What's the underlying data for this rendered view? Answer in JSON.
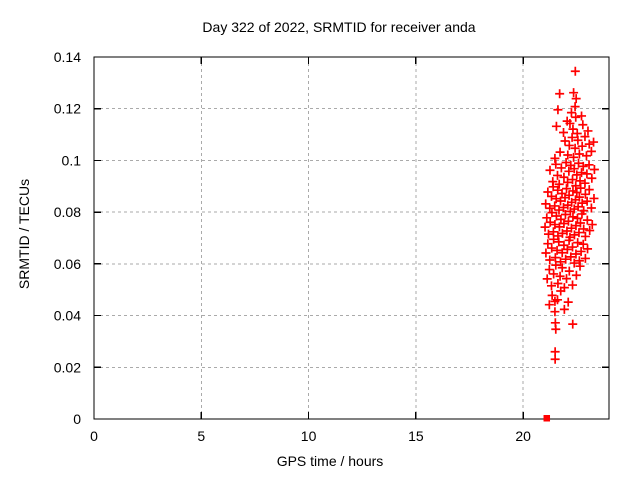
{
  "window": {
    "background": "#ffffff"
  },
  "chart_data": {
    "type": "scatter",
    "title": "Day 322 of 2022, SRMTID for receiver anda",
    "xlabel": "GPS time / hours",
    "ylabel": "SRMTID / TECUs",
    "xlim": [
      0,
      24
    ],
    "ylim": [
      0,
      0.14
    ],
    "xticks": [
      0,
      5,
      10,
      15,
      20
    ],
    "xtick_labels": [
      "0",
      "5",
      "10",
      "15",
      "20"
    ],
    "yticks": [
      0,
      0.02,
      0.04,
      0.06,
      0.08,
      0.1,
      0.12,
      0.14
    ],
    "ytick_labels": [
      "0",
      "0.02",
      "0.04",
      "0.06",
      "0.08",
      "0.1",
      "0.12",
      "0.14"
    ],
    "grid": true,
    "grid_color": "#aaaaaa",
    "axis_color": "#000000",
    "marker_color": "#ff0000",
    "legend": "none",
    "series": [
      {
        "name": "srmtid-values",
        "marker": "plus",
        "color": "#ff0000",
        "points": [
          [
            22.43,
            0.1345
          ],
          [
            21.7,
            0.1258
          ],
          [
            22.35,
            0.1262
          ],
          [
            22.47,
            0.1239
          ],
          [
            21.62,
            0.1196
          ],
          [
            22.25,
            0.1185
          ],
          [
            22.42,
            0.1208
          ],
          [
            22.72,
            0.1172
          ],
          [
            21.55,
            0.1132
          ],
          [
            21.88,
            0.1108
          ],
          [
            22.05,
            0.1152
          ],
          [
            22.18,
            0.1143
          ],
          [
            22.32,
            0.1121
          ],
          [
            22.45,
            0.1167
          ],
          [
            22.52,
            0.1104
          ],
          [
            22.78,
            0.1138
          ],
          [
            23.02,
            0.1114
          ],
          [
            21.48,
            0.1008
          ],
          [
            21.72,
            0.1032
          ],
          [
            21.95,
            0.1075
          ],
          [
            22.08,
            0.1021
          ],
          [
            22.15,
            0.1058
          ],
          [
            22.28,
            0.1089
          ],
          [
            22.35,
            0.1012
          ],
          [
            22.42,
            0.1047
          ],
          [
            22.55,
            0.1078
          ],
          [
            22.62,
            0.1025
          ],
          [
            22.75,
            0.1055
          ],
          [
            22.88,
            0.1092
          ],
          [
            22.95,
            0.1018
          ],
          [
            23.08,
            0.1063
          ],
          [
            23.18,
            0.1035
          ],
          [
            23.28,
            0.1071
          ],
          [
            21.25,
            0.0962
          ],
          [
            21.38,
            0.0918
          ],
          [
            21.52,
            0.0985
          ],
          [
            21.6,
            0.0942
          ],
          [
            21.68,
            0.0908
          ],
          [
            21.78,
            0.0971
          ],
          [
            21.9,
            0.0935
          ],
          [
            22.0,
            0.0992
          ],
          [
            22.07,
            0.0915
          ],
          [
            22.13,
            0.0958
          ],
          [
            22.22,
            0.0981
          ],
          [
            22.3,
            0.0926
          ],
          [
            22.38,
            0.0968
          ],
          [
            22.45,
            0.0902
          ],
          [
            22.5,
            0.0944
          ],
          [
            22.58,
            0.0989
          ],
          [
            22.65,
            0.0921
          ],
          [
            22.72,
            0.0953
          ],
          [
            22.8,
            0.0977
          ],
          [
            22.88,
            0.0912
          ],
          [
            22.97,
            0.0948
          ],
          [
            23.07,
            0.0983
          ],
          [
            23.2,
            0.0931
          ],
          [
            23.32,
            0.0965
          ],
          [
            21.05,
            0.0832
          ],
          [
            21.15,
            0.0878
          ],
          [
            21.24,
            0.0815
          ],
          [
            21.32,
            0.0861
          ],
          [
            21.4,
            0.0898
          ],
          [
            21.47,
            0.0824
          ],
          [
            21.54,
            0.0852
          ],
          [
            21.61,
            0.0885
          ],
          [
            21.67,
            0.0808
          ],
          [
            21.74,
            0.0843
          ],
          [
            21.81,
            0.0872
          ],
          [
            21.88,
            0.0818
          ],
          [
            21.95,
            0.0856
          ],
          [
            22.02,
            0.0891
          ],
          [
            22.08,
            0.0827
          ],
          [
            22.14,
            0.0865
          ],
          [
            22.2,
            0.0803
          ],
          [
            22.26,
            0.0838
          ],
          [
            22.32,
            0.0882
          ],
          [
            22.38,
            0.0812
          ],
          [
            22.44,
            0.0848
          ],
          [
            22.5,
            0.0876
          ],
          [
            22.56,
            0.0821
          ],
          [
            22.62,
            0.0858
          ],
          [
            22.68,
            0.0893
          ],
          [
            22.75,
            0.0835
          ],
          [
            22.82,
            0.0806
          ],
          [
            22.9,
            0.0869
          ],
          [
            22.98,
            0.0842
          ],
          [
            23.08,
            0.0887
          ],
          [
            23.18,
            0.0816
          ],
          [
            23.3,
            0.0853
          ],
          [
            21.02,
            0.0742
          ],
          [
            21.1,
            0.0778
          ],
          [
            21.18,
            0.0715
          ],
          [
            21.26,
            0.0761
          ],
          [
            21.34,
            0.0798
          ],
          [
            21.41,
            0.0724
          ],
          [
            21.48,
            0.0752
          ],
          [
            21.55,
            0.0785
          ],
          [
            21.62,
            0.0708
          ],
          [
            21.69,
            0.0743
          ],
          [
            21.76,
            0.0772
          ],
          [
            21.83,
            0.0718
          ],
          [
            21.9,
            0.0756
          ],
          [
            21.97,
            0.0791
          ],
          [
            22.04,
            0.0727
          ],
          [
            22.11,
            0.0765
          ],
          [
            22.18,
            0.0703
          ],
          [
            22.25,
            0.0738
          ],
          [
            22.32,
            0.0782
          ],
          [
            22.39,
            0.0712
          ],
          [
            22.46,
            0.0748
          ],
          [
            22.53,
            0.0776
          ],
          [
            22.6,
            0.0721
          ],
          [
            22.67,
            0.0758
          ],
          [
            22.74,
            0.0793
          ],
          [
            22.82,
            0.0735
          ],
          [
            22.9,
            0.0706
          ],
          [
            22.99,
            0.0769
          ],
          [
            23.1,
            0.0729
          ],
          [
            23.22,
            0.0752
          ],
          [
            21.06,
            0.0642
          ],
          [
            21.15,
            0.0678
          ],
          [
            21.24,
            0.0615
          ],
          [
            21.33,
            0.0661
          ],
          [
            21.42,
            0.0695
          ],
          [
            21.5,
            0.0624
          ],
          [
            21.58,
            0.0652
          ],
          [
            21.66,
            0.0685
          ],
          [
            21.74,
            0.0608
          ],
          [
            21.82,
            0.0643
          ],
          [
            21.9,
            0.0672
          ],
          [
            21.98,
            0.0618
          ],
          [
            22.06,
            0.0656
          ],
          [
            22.14,
            0.0691
          ],
          [
            22.22,
            0.0627
          ],
          [
            22.3,
            0.0665
          ],
          [
            22.38,
            0.0603
          ],
          [
            22.46,
            0.0638
          ],
          [
            22.54,
            0.0682
          ],
          [
            22.62,
            0.0612
          ],
          [
            22.7,
            0.0648
          ],
          [
            22.8,
            0.0676
          ],
          [
            22.9,
            0.0621
          ],
          [
            23.0,
            0.0658
          ],
          [
            21.12,
            0.0542
          ],
          [
            21.22,
            0.0578
          ],
          [
            21.32,
            0.0515
          ],
          [
            21.42,
            0.0561
          ],
          [
            21.52,
            0.0595
          ],
          [
            21.62,
            0.0524
          ],
          [
            21.72,
            0.0552
          ],
          [
            21.82,
            0.0585
          ],
          [
            21.92,
            0.0508
          ],
          [
            22.02,
            0.0543
          ],
          [
            22.15,
            0.0572
          ],
          [
            22.3,
            0.0518
          ],
          [
            22.48,
            0.0556
          ],
          [
            22.65,
            0.0591
          ],
          [
            21.22,
            0.0442
          ],
          [
            21.35,
            0.0478
          ],
          [
            21.48,
            0.0415
          ],
          [
            21.48,
            0.0455
          ],
          [
            21.6,
            0.0461
          ],
          [
            21.75,
            0.0495
          ],
          [
            21.92,
            0.0424
          ],
          [
            22.1,
            0.0452
          ],
          [
            21.5,
            0.0372
          ],
          [
            21.52,
            0.0347
          ],
          [
            22.31,
            0.0367
          ],
          [
            21.49,
            0.026
          ],
          [
            21.49,
            0.0231
          ]
        ]
      },
      {
        "name": "srmtid-start-marker",
        "marker": "filled-square",
        "color": "#ff0000",
        "points": [
          [
            21.1,
            0
          ]
        ]
      }
    ]
  }
}
